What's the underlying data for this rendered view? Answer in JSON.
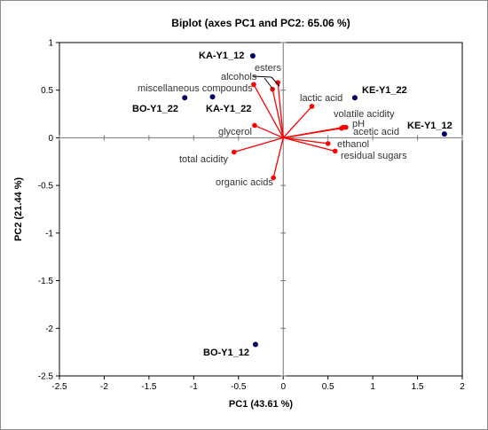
{
  "chart_data": {
    "type": "scatter",
    "title": "Biplot (axes PC1 and PC2: 65.06 %)",
    "xlabel": "PC1 (43.61 %)",
    "ylabel": "PC2 (21.44 %)",
    "xlim": [
      -2.5,
      2.0
    ],
    "ylim": [
      -2.5,
      1.0
    ],
    "xticks": [
      "-2.5",
      "-2",
      "-1.5",
      "-1",
      "-0.5",
      "0",
      "0.5",
      "1",
      "1.5",
      "2"
    ],
    "yticks": [
      "-2.5",
      "-2",
      "-1.5",
      "-1",
      "-0.5",
      "0",
      "0.5",
      "1"
    ],
    "xtick_values": [
      -2.5,
      -2,
      -1.5,
      -1,
      -0.5,
      0,
      0.5,
      1,
      1.5,
      2
    ],
    "ytick_values": [
      -2.5,
      -2,
      -1.5,
      -1,
      -0.5,
      0,
      0.5,
      1
    ],
    "grid": false,
    "series": [
      {
        "kind": "observations",
        "color": "#000066",
        "points": [
          {
            "label": "KA-Y1_12",
            "x": -0.34,
            "y": 0.86
          },
          {
            "label": "BO-Y1_22",
            "x": -1.1,
            "y": 0.42
          },
          {
            "label": "KA-Y1_22",
            "x": -0.79,
            "y": 0.43
          },
          {
            "label": "KE-Y1_22",
            "x": 0.8,
            "y": 0.42
          },
          {
            "label": "KE-Y1_12",
            "x": 1.8,
            "y": 0.04
          },
          {
            "label": "BO-Y1_12",
            "x": -0.31,
            "y": -2.17
          }
        ]
      },
      {
        "kind": "variables",
        "color": "#ff0000",
        "points": [
          {
            "label": "esters",
            "x": -0.06,
            "y": 0.58
          },
          {
            "label": "alcohols",
            "x": -0.12,
            "y": 0.51
          },
          {
            "label": "miscellaneous compounds",
            "x": -0.33,
            "y": 0.56
          },
          {
            "label": "lactic acid",
            "x": 0.32,
            "y": 0.33
          },
          {
            "label": "volatile acidity",
            "x": 0.7,
            "y": 0.11
          },
          {
            "label": "pH",
            "x": 0.67,
            "y": 0.11
          },
          {
            "label": "acetic acid",
            "x": 0.65,
            "y": 0.1
          },
          {
            "label": "glycerol",
            "x": -0.32,
            "y": 0.13
          },
          {
            "label": "ethanol",
            "x": 0.5,
            "y": -0.06
          },
          {
            "label": "residual sugars",
            "x": 0.58,
            "y": -0.14
          },
          {
            "label": "total acidity",
            "x": -0.55,
            "y": -0.15
          },
          {
            "label": "organic acids",
            "x": -0.11,
            "y": -0.42
          }
        ]
      }
    ]
  }
}
